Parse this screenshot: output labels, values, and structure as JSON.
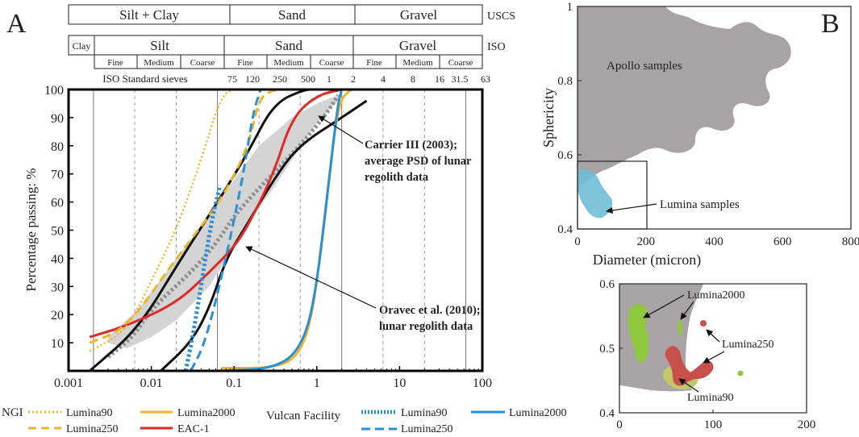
{
  "panel_a": {
    "letter": "A"
  },
  "panel_b": {
    "letter": "B"
  },
  "classification": {
    "uscs_label": "USCS",
    "uscs": [
      "Silt + Clay",
      "Sand",
      "Gravel"
    ],
    "iso_label": "ISO",
    "iso": [
      "Clay",
      "Silt",
      "Sand",
      "Gravel"
    ],
    "iso_sub": [
      "Fine",
      "Medium",
      "Coarse",
      "Fine",
      "Medium",
      "Coarse",
      "Fine",
      "Medium",
      "Coarse"
    ],
    "sieves_label": "ISO Standard sieves",
    "sieves": [
      "75",
      "120",
      "250",
      "500",
      "1",
      "2",
      "4",
      "8",
      "16",
      "31.5",
      "63"
    ]
  },
  "legend": {
    "ngi_label": "NGI",
    "vulcan_label": "Vulcan Facility",
    "ngi_items": [
      "Lumina90",
      "Lumina250",
      "Lumina2000",
      "EAC-1"
    ],
    "vulcan_items": [
      "Lumina90",
      "Lumina250",
      "Lumina2000"
    ]
  },
  "colors": {
    "yellow": "#f0b429",
    "red": "#e02a25",
    "blue": "#2b8fd3",
    "black": "#111111",
    "grey": "#8f8f8f",
    "band": "#d4d4d4",
    "apollo": "#aaa3a6",
    "lumina_blue": "#6fbcd6",
    "green": "#8ec83c",
    "dark_red": "#c8504a",
    "khaki": "#c4c66c"
  },
  "chart_data": [
    {
      "id": "psd",
      "type": "line",
      "xscale": "log",
      "xlim": [
        0.001,
        100
      ],
      "ylim": [
        0,
        100
      ],
      "xlabel": "",
      "ylabel": "Percentage passing: %",
      "xticks": [
        "0.001",
        "0.01",
        "0.1",
        "1",
        "10",
        "100"
      ],
      "yticks": [
        "10",
        "20",
        "30",
        "40",
        "50",
        "60",
        "70",
        "80",
        "90",
        "100"
      ],
      "annotations": [
        "Carrier III (2003);",
        "average PSD of lunar",
        "regolith data",
        "Oravec et al. (2010);",
        "lunar regolith data"
      ],
      "band": {
        "name": "Carrier III (2003) range",
        "upper": [
          [
            0.003,
            12
          ],
          [
            0.007,
            22
          ],
          [
            0.02,
            40
          ],
          [
            0.05,
            55
          ],
          [
            0.1,
            68
          ],
          [
            0.2,
            80
          ],
          [
            0.5,
            90
          ],
          [
            1,
            95
          ],
          [
            1.8,
            98
          ]
        ],
        "lower": [
          [
            1.8,
            96
          ],
          [
            1,
            88
          ],
          [
            0.5,
            75
          ],
          [
            0.3,
            65
          ],
          [
            0.2,
            58
          ],
          [
            0.1,
            44
          ],
          [
            0.05,
            30
          ],
          [
            0.02,
            18
          ],
          [
            0.01,
            12
          ],
          [
            0.005,
            8
          ],
          [
            0.003,
            10
          ]
        ]
      },
      "series": [
        {
          "name": "Carrier III (2003) average",
          "color": "#8f8f8f",
          "style": "dotted-thick",
          "points": [
            [
              0.003,
              5
            ],
            [
              0.006,
              12
            ],
            [
              0.01,
              22
            ],
            [
              0.03,
              35
            ],
            [
              0.06,
              45
            ],
            [
              0.1,
              55
            ],
            [
              0.2,
              65
            ],
            [
              0.5,
              77
            ],
            [
              1,
              87
            ],
            [
              1.5,
              94
            ],
            [
              1.8,
              98
            ]
          ]
        },
        {
          "name": "Oravec upper",
          "color": "#111111",
          "style": "solid",
          "points": [
            [
              0.0018,
              0
            ],
            [
              0.007,
              15
            ],
            [
              0.023,
              40
            ],
            [
              0.07,
              62
            ],
            [
              0.15,
              78
            ],
            [
              0.3,
              95
            ],
            [
              0.7,
              100
            ],
            [
              1.0,
              100
            ]
          ]
        },
        {
          "name": "Oravec lower",
          "color": "#111111",
          "style": "solid",
          "points": [
            [
              0.013,
              0
            ],
            [
              0.03,
              10
            ],
            [
              0.05,
              22
            ],
            [
              0.08,
              40
            ],
            [
              0.15,
              53
            ],
            [
              0.3,
              68
            ],
            [
              0.6,
              80
            ],
            [
              2,
              90
            ],
            [
              4,
              96
            ]
          ]
        },
        {
          "name": "EAC-1 (NGI)",
          "color": "#e02a25",
          "style": "solid",
          "points": [
            [
              0.0018,
              12
            ],
            [
              0.005,
              16
            ],
            [
              0.02,
              24
            ],
            [
              0.05,
              35
            ],
            [
              0.1,
              44
            ],
            [
              0.15,
              52
            ],
            [
              0.3,
              70
            ],
            [
              0.5,
              90
            ],
            [
              1,
              98
            ],
            [
              2,
              100
            ]
          ]
        },
        {
          "name": "Lumina90 (NGI)",
          "color": "#f0b429",
          "style": "dotted",
          "points": [
            [
              0.0018,
              7
            ],
            [
              0.005,
              14
            ],
            [
              0.01,
              32
            ],
            [
              0.02,
              50
            ],
            [
              0.04,
              75
            ],
            [
              0.07,
              98
            ],
            [
              0.1,
              100
            ]
          ]
        },
        {
          "name": "Lumina250 (NGI)",
          "color": "#f0b429",
          "style": "dashed",
          "points": [
            [
              0.0018,
              10
            ],
            [
              0.005,
              15
            ],
            [
              0.02,
              40
            ],
            [
              0.05,
              55
            ],
            [
              0.08,
              64
            ],
            [
              0.15,
              80
            ],
            [
              0.2,
              97
            ],
            [
              0.3,
              100
            ],
            [
              0.5,
              100
            ]
          ]
        },
        {
          "name": "Lumina2000 (NGI)",
          "color": "#f0b429",
          "style": "solid",
          "points": [
            [
              0.07,
              1
            ],
            [
              0.3,
              1
            ],
            [
              0.6,
              5
            ],
            [
              0.9,
              20
            ],
            [
              1.3,
              60
            ],
            [
              1.8,
              95
            ],
            [
              2.5,
              100
            ],
            [
              3,
              100
            ]
          ]
        },
        {
          "name": "Lumina90 (Vulcan)",
          "color": "#2b8fd3",
          "style": "dotted-thick",
          "points": [
            [
              0.026,
              0
            ],
            [
              0.033,
              15
            ],
            [
              0.045,
              40
            ],
            [
              0.055,
              55
            ],
            [
              0.068,
              66
            ]
          ]
        },
        {
          "name": "Lumina250 (Vulcan)",
          "color": "#2b8fd3",
          "style": "dashed",
          "points": [
            [
              0.03,
              0
            ],
            [
              0.045,
              10
            ],
            [
              0.08,
              40
            ],
            [
              0.13,
              70
            ],
            [
              0.17,
              92
            ],
            [
              0.21,
              100
            ]
          ]
        },
        {
          "name": "Lumina2000 (Vulcan)",
          "color": "#2b8fd3",
          "style": "solid",
          "points": [
            [
              0.07,
              0
            ],
            [
              0.35,
              1
            ],
            [
              0.7,
              10
            ],
            [
              1,
              30
            ],
            [
              1.5,
              75
            ],
            [
              1.8,
              95
            ],
            [
              2,
              100
            ]
          ]
        }
      ]
    },
    {
      "id": "shape_main",
      "type": "scatter",
      "xlim": [
        0,
        800
      ],
      "ylim": [
        0.4,
        1.0
      ],
      "xlabel": "Diameter (micron)",
      "ylabel": "Sphericity",
      "xticks": [
        "0",
        "200",
        "400",
        "600",
        "800"
      ],
      "yticks": [
        "0.4",
        "0.6",
        "0.8",
        "1"
      ],
      "annotations": [
        "Apollo samples",
        "Lumina samples"
      ]
    },
    {
      "id": "shape_inset",
      "type": "scatter",
      "xlim": [
        0,
        200
      ],
      "ylim": [
        0.4,
        0.6
      ],
      "xlabel": "",
      "ylabel": "",
      "xticks": [
        "0",
        "100",
        "200"
      ],
      "yticks": [
        "0.4",
        "0.5",
        "0.6"
      ],
      "annotations": [
        "Lumina2000",
        "Lumina250",
        "Lumina90"
      ]
    }
  ]
}
